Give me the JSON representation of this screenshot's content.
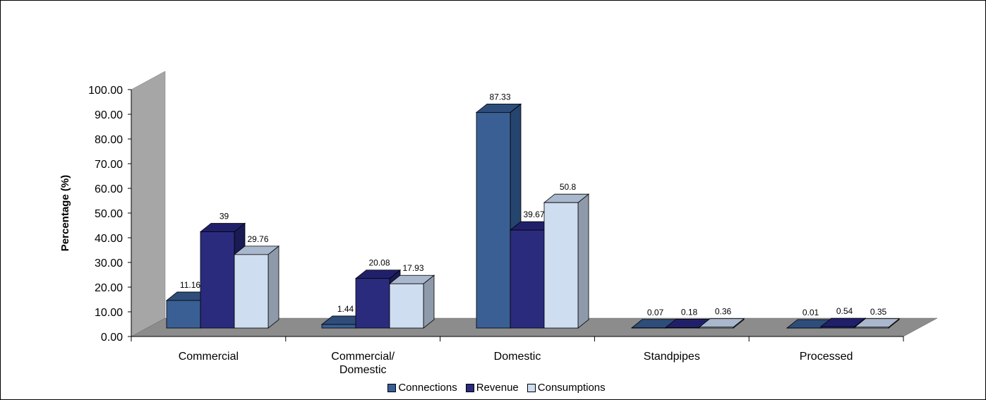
{
  "chart_data": {
    "type": "bar",
    "style": "3d-clustered-column",
    "categories": [
      "Commercial",
      "Commercial/\nDomestic",
      "Domestic",
      "Standpipes",
      "Processed"
    ],
    "series": [
      {
        "name": "Connections",
        "color": "#3A5F94",
        "side_color": "#25446E",
        "top_color": "#2E4D7A",
        "values": [
          11.16,
          1.44,
          87.33,
          0.07,
          0.01
        ],
        "labels": [
          "11.16",
          "1.44",
          "87.33",
          "0.07",
          "0.01"
        ]
      },
      {
        "name": "Revenue",
        "color": "#2B2B7E",
        "side_color": "#1A1A55",
        "top_color": "#20206A",
        "values": [
          39,
          20.08,
          39.67,
          0.18,
          0.54
        ],
        "labels": [
          "39",
          "20.08",
          "39.67",
          "0.18",
          "0.54"
        ]
      },
      {
        "name": "Consumptions",
        "color": "#CFDDF1",
        "side_color": "#8E9AAA",
        "top_color": "#A9B8CC",
        "values": [
          29.76,
          17.93,
          50.8,
          0.36,
          0.35
        ],
        "labels": [
          "29.76",
          "17.93",
          "50.8",
          "0.36",
          "0.35"
        ]
      }
    ],
    "ylabel": "Percentage (%)",
    "xlabel": "",
    "ylim": [
      0,
      100
    ],
    "y_ticks": [
      "0.00",
      "10.00",
      "20.00",
      "30.00",
      "40.00",
      "50.00",
      "60.00",
      "70.00",
      "80.00",
      "90.00",
      "100.00"
    ],
    "grid": false,
    "legend_position": "bottom",
    "wall_color": "#A6A6A6",
    "floor_color": "#8C8C8C"
  }
}
